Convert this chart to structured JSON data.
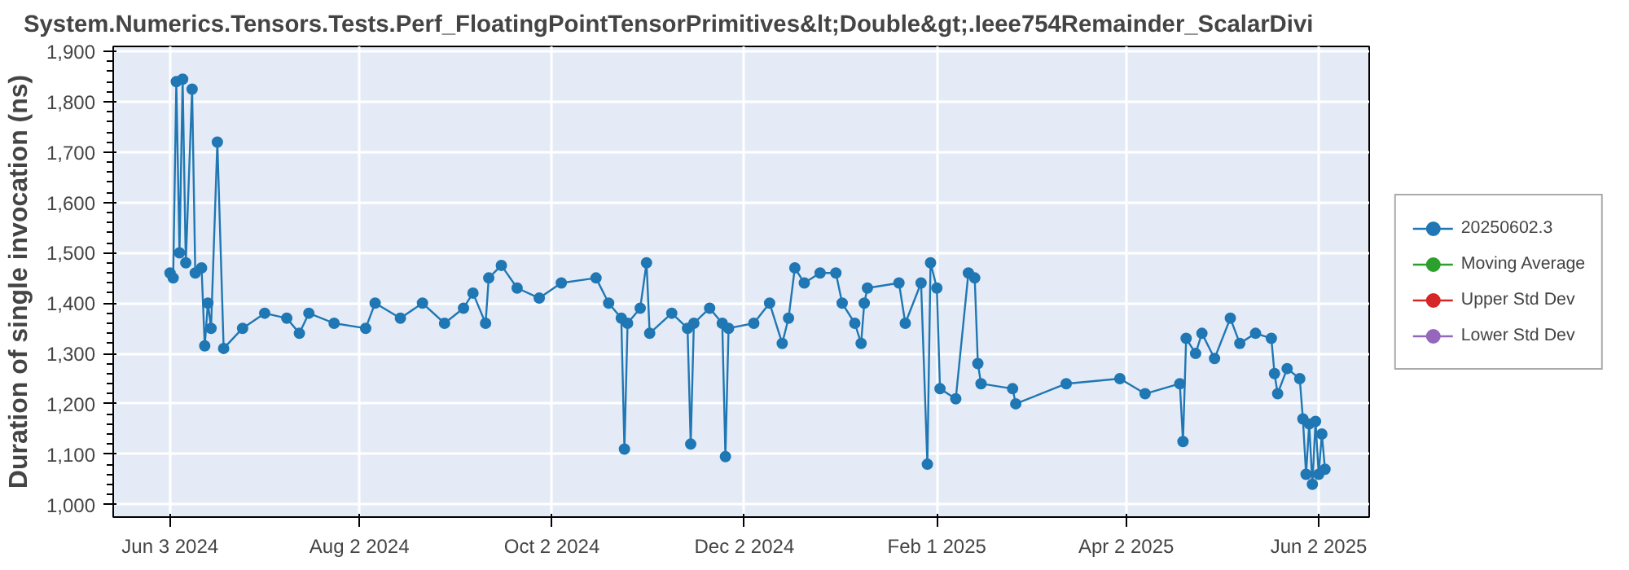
{
  "chart_data": {
    "type": "line",
    "title": "System.Numerics.Tensors.Tests.Perf_FloatingPointTensorPrimitives&lt;Double&gt;.Ieee754Remainder_ScalarDivi",
    "ylabel": "Duration of single invocation (ns)",
    "xlim": [
      "2024-05-16",
      "2025-06-18"
    ],
    "xticks": [
      {
        "value": "2024-06-03",
        "label": "Jun 3 2024"
      },
      {
        "value": "2024-08-02",
        "label": "Aug 2 2024"
      },
      {
        "value": "2024-10-02",
        "label": "Oct 2 2024"
      },
      {
        "value": "2024-12-02",
        "label": "Dec 2 2024"
      },
      {
        "value": "2025-02-01",
        "label": "Feb 1 2025"
      },
      {
        "value": "2025-04-02",
        "label": "Apr 2 2025"
      },
      {
        "value": "2025-06-02",
        "label": "Jun 2 2025"
      }
    ],
    "ylim": [
      975,
      1910
    ],
    "yticks": [
      {
        "value": 1000,
        "label": "1,000"
      },
      {
        "value": 1100,
        "label": "1,100"
      },
      {
        "value": 1200,
        "label": "1,200"
      },
      {
        "value": 1300,
        "label": "1,300"
      },
      {
        "value": 1400,
        "label": "1,400"
      },
      {
        "value": 1500,
        "label": "1,500"
      },
      {
        "value": 1600,
        "label": "1,600"
      },
      {
        "value": 1700,
        "label": "1,700"
      },
      {
        "value": 1800,
        "label": "1,800"
      },
      {
        "value": 1900,
        "label": "1,900"
      }
    ],
    "grid": true,
    "legend": "right",
    "marker": "circle",
    "line_style": "solid",
    "series": [
      {
        "name": "20250602.3",
        "color": "#1f77b4",
        "x": [
          "2024-06-03",
          "2024-06-04",
          "2024-06-05",
          "2024-06-06",
          "2024-06-07",
          "2024-06-08",
          "2024-06-10",
          "2024-06-11",
          "2024-06-13",
          "2024-06-14",
          "2024-06-15",
          "2024-06-16",
          "2024-06-18",
          "2024-06-20",
          "2024-06-26",
          "2024-07-03",
          "2024-07-10",
          "2024-07-14",
          "2024-07-17",
          "2024-07-25",
          "2024-08-04",
          "2024-08-07",
          "2024-08-15",
          "2024-08-22",
          "2024-08-29",
          "2024-09-04",
          "2024-09-07",
          "2024-09-11",
          "2024-09-12",
          "2024-09-16",
          "2024-09-21",
          "2024-09-28",
          "2024-10-05",
          "2024-10-16",
          "2024-10-20",
          "2024-10-24",
          "2024-10-25",
          "2024-10-26",
          "2024-10-30",
          "2024-11-01",
          "2024-11-02",
          "2024-11-09",
          "2024-11-14",
          "2024-11-15",
          "2024-11-16",
          "2024-11-21",
          "2024-11-25",
          "2024-11-26",
          "2024-11-27",
          "2024-12-05",
          "2024-12-10",
          "2024-12-14",
          "2024-12-16",
          "2024-12-18",
          "2024-12-21",
          "2024-12-26",
          "2024-12-31",
          "2025-01-02",
          "2025-01-06",
          "2025-01-08",
          "2025-01-09",
          "2025-01-10",
          "2025-01-20",
          "2025-01-22",
          "2025-01-27",
          "2025-01-29",
          "2025-01-30",
          "2025-02-01",
          "2025-02-02",
          "2025-02-07",
          "2025-02-11",
          "2025-02-13",
          "2025-02-14",
          "2025-02-15",
          "2025-02-25",
          "2025-02-26",
          "2025-03-14",
          "2025-03-31",
          "2025-04-08",
          "2025-04-19",
          "2025-04-20",
          "2025-04-21",
          "2025-04-24",
          "2025-04-26",
          "2025-04-30",
          "2025-05-05",
          "2025-05-08",
          "2025-05-13",
          "2025-05-18",
          "2025-05-19",
          "2025-05-20",
          "2025-05-23",
          "2025-05-27",
          "2025-05-28",
          "2025-05-29",
          "2025-05-30",
          "2025-05-31",
          "2025-06-01",
          "2025-06-02",
          "2025-06-03",
          "2025-06-04"
        ],
        "values": [
          1460,
          1450,
          1840,
          1500,
          1845,
          1480,
          1825,
          1460,
          1470,
          1315,
          1400,
          1350,
          1720,
          1310,
          1350,
          1380,
          1370,
          1340,
          1380,
          1360,
          1350,
          1400,
          1370,
          1400,
          1360,
          1390,
          1420,
          1360,
          1450,
          1475,
          1430,
          1410,
          1440,
          1450,
          1400,
          1370,
          1110,
          1360,
          1390,
          1480,
          1340,
          1380,
          1350,
          1120,
          1360,
          1390,
          1360,
          1095,
          1350,
          1360,
          1400,
          1320,
          1370,
          1470,
          1440,
          1460,
          1460,
          1400,
          1360,
          1320,
          1400,
          1430,
          1440,
          1360,
          1440,
          1080,
          1480,
          1430,
          1230,
          1210,
          1460,
          1450,
          1280,
          1240,
          1230,
          1200,
          1240,
          1250,
          1220,
          1240,
          1125,
          1330,
          1300,
          1340,
          1290,
          1370,
          1320,
          1340,
          1330,
          1260,
          1220,
          1270,
          1250,
          1170,
          1060,
          1160,
          1040,
          1165,
          1060,
          1140,
          1070
        ]
      },
      {
        "name": "Moving Average",
        "color": "#2ca02c"
      },
      {
        "name": "Upper Std Dev",
        "color": "#d62728"
      },
      {
        "name": "Lower Std Dev",
        "color": "#9467bd"
      }
    ]
  }
}
